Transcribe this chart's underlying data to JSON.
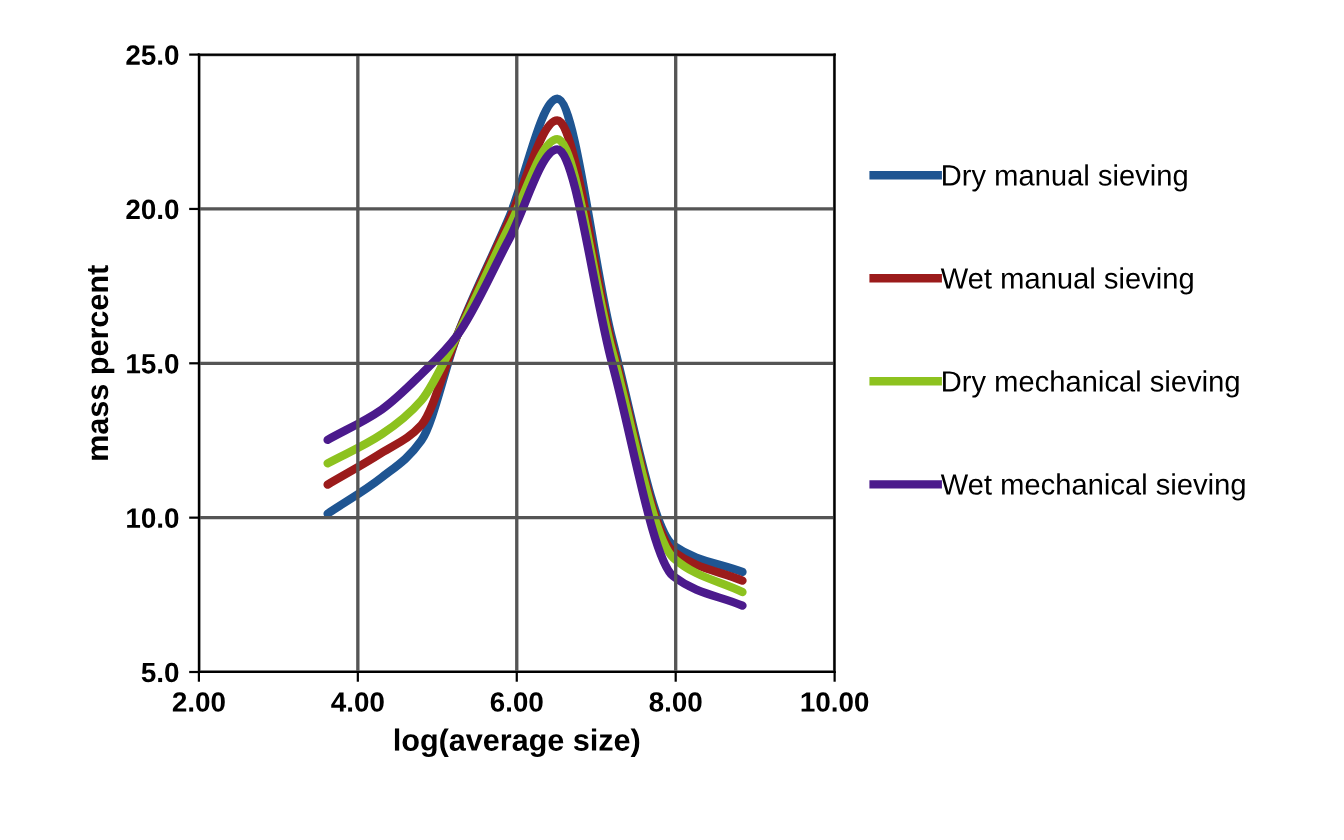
{
  "chart_data": {
    "type": "line",
    "xlabel": "log(average size)",
    "ylabel": "mass percent",
    "x": [
      3.62,
      4.3,
      4.8,
      5.25,
      5.9,
      6.51,
      7.2,
      7.97,
      8.84
    ],
    "series": [
      {
        "name": "Dry manual sieving",
        "color": "#1f5592",
        "values": [
          10.13,
          11.3,
          12.5,
          15.9,
          19.7,
          23.57,
          15.8,
          9.1,
          8.24
        ]
      },
      {
        "name": "Wet manual sieving",
        "color": "#9b1b1b",
        "values": [
          11.07,
          12.1,
          13.0,
          15.9,
          19.6,
          22.87,
          15.6,
          8.9,
          7.96
        ]
      },
      {
        "name": "Dry mechanical sieving",
        "color": "#8dc21f",
        "values": [
          11.76,
          12.7,
          13.8,
          15.9,
          19.4,
          22.26,
          15.4,
          8.7,
          7.59
        ]
      },
      {
        "name": "Wet mechanical sieving",
        "color": "#4b1a8c",
        "values": [
          12.52,
          13.5,
          14.65,
          15.9,
          19.0,
          21.93,
          15.0,
          8.1,
          7.15
        ]
      }
    ],
    "xlim": [
      2,
      10
    ],
    "xticks": [
      {
        "value": 2,
        "label": "2.00"
      },
      {
        "value": 4,
        "label": "4.00"
      },
      {
        "value": 6,
        "label": "6.00"
      },
      {
        "value": 8,
        "label": "8.00"
      },
      {
        "value": 10,
        "label": "10.00"
      }
    ],
    "ylim": [
      5,
      25
    ],
    "yticks": [
      {
        "value": 5,
        "label": "5.0"
      },
      {
        "value": 10,
        "label": "10.0"
      },
      {
        "value": 15,
        "label": "15.0"
      },
      {
        "value": 20,
        "label": "20.0"
      },
      {
        "value": 25,
        "label": "25.0"
      }
    ],
    "grid": true,
    "legend": "right",
    "marker": "none",
    "line_style": "solid"
  }
}
